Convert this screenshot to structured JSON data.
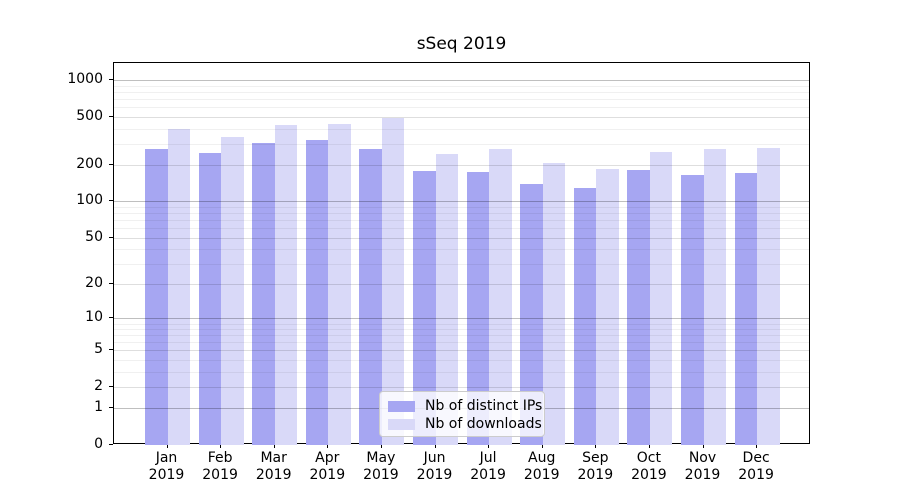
{
  "chart_data": {
    "type": "bar",
    "title": "sSeq 2019",
    "xlabel": "",
    "ylabel": "",
    "x_tick_year": "2019",
    "categories": [
      "Jan",
      "Feb",
      "Mar",
      "Apr",
      "May",
      "Jun",
      "Jul",
      "Aug",
      "Sep",
      "Oct",
      "Nov",
      "Dec"
    ],
    "series": [
      {
        "name": "Nb of distinct IPs",
        "color": "#a6a6f2",
        "values": [
          272,
          250,
          305,
          323,
          272,
          179,
          176,
          140,
          129,
          182,
          166,
          173
        ]
      },
      {
        "name": "Nb of downloads",
        "color": "#d9d9f8",
        "values": [
          395,
          345,
          430,
          438,
          490,
          247,
          270,
          208,
          186,
          257,
          270,
          277
        ]
      }
    ],
    "y_axis": {
      "scale": "log10(value+1)",
      "tick_values": [
        0,
        1,
        2,
        5,
        10,
        20,
        50,
        100,
        200,
        500,
        1000
      ],
      "tick_labels": [
        "0",
        "1",
        "2",
        "5",
        "10",
        "20",
        "50",
        "100",
        "200",
        "500",
        "1000"
      ],
      "minor_grid_values": [
        3,
        4,
        6,
        7,
        8,
        9,
        30,
        40,
        60,
        70,
        80,
        90,
        300,
        400,
        600,
        700,
        800,
        900
      ],
      "range_top": 1390
    },
    "legend": {
      "position": "inside-bottom-center",
      "entries": [
        "Nb of distinct IPs",
        "Nb of downloads"
      ]
    },
    "grid": "on"
  }
}
